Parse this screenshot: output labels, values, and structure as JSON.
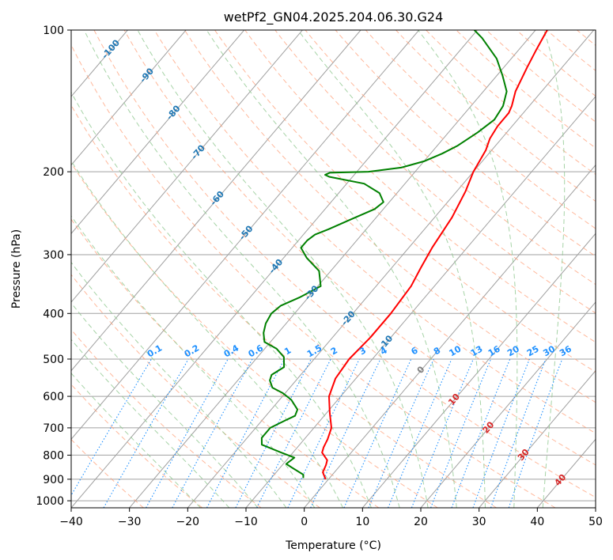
{
  "chart_data": {
    "type": "line",
    "title": "wetPf2_GN04.2025.204.06.30.G24",
    "xlabel": "Temperature (°C)",
    "ylabel": "Pressure (hPa)",
    "xlim": [
      -40,
      50
    ],
    "ylim": [
      1035,
      100
    ],
    "y_scale": "log",
    "x_ticks": [
      "−40",
      "−30",
      "−20",
      "−10",
      "0",
      "10",
      "20",
      "30",
      "40",
      "50"
    ],
    "y_ticks": [
      {
        "p": 100,
        "label": "100"
      },
      {
        "p": 200,
        "label": "200"
      },
      {
        "p": 300,
        "label": "300"
      },
      {
        "p": 400,
        "label": "400"
      },
      {
        "p": 500,
        "label": "500"
      },
      {
        "p": 600,
        "label": "600"
      },
      {
        "p": 700,
        "label": "700"
      },
      {
        "p": 800,
        "label": "800"
      },
      {
        "p": 900,
        "label": "900"
      },
      {
        "p": 1000,
        "label": "1000"
      }
    ],
    "grid": true,
    "colors": {
      "temperature": "#ff0000",
      "dewpoint": "#008000",
      "isotherm": "#a0a0a0",
      "dry_adiabat": "#ffa07a",
      "moist_adiabat": "#90c890",
      "mixing_ratio": "#1e90ff",
      "skew_isotherm_label": "#1f77b4",
      "warm_isotherm_label": "#d62728",
      "zero_isotherm_label": "#808080"
    },
    "series": [
      {
        "key": "temperature",
        "points": [
          [
            -0.5,
            900
          ],
          [
            -2,
            870
          ],
          [
            -2.5,
            840
          ],
          [
            -3,
            820
          ],
          [
            -5,
            790
          ],
          [
            -5.5,
            770
          ],
          [
            -6,
            740
          ],
          [
            -7,
            700
          ],
          [
            -9.5,
            650
          ],
          [
            -12,
            600
          ],
          [
            -13.5,
            550
          ],
          [
            -14,
            500
          ],
          [
            -13.5,
            450
          ],
          [
            -13.5,
            400
          ],
          [
            -14,
            350
          ],
          [
            -15,
            320
          ],
          [
            -16,
            290
          ],
          [
            -17,
            250
          ],
          [
            -18.5,
            220
          ],
          [
            -20,
            200
          ],
          [
            -21,
            180
          ],
          [
            -22,
            170
          ],
          [
            -22.5,
            160
          ],
          [
            -22.5,
            150
          ],
          [
            -23,
            145
          ],
          [
            -24.5,
            135
          ],
          [
            -26,
            120
          ],
          [
            -27,
            110
          ],
          [
            -28,
            100
          ]
        ]
      },
      {
        "key": "dewpoint",
        "points": [
          [
            -4.5,
            895
          ],
          [
            -5,
            880
          ],
          [
            -8,
            850
          ],
          [
            -9.5,
            835
          ],
          [
            -9,
            810
          ],
          [
            -12,
            790
          ],
          [
            -16.5,
            760
          ],
          [
            -17.5,
            735
          ],
          [
            -17.5,
            700
          ],
          [
            -16,
            675
          ],
          [
            -15,
            660
          ],
          [
            -15.5,
            640
          ],
          [
            -18,
            610
          ],
          [
            -20.5,
            590
          ],
          [
            -23,
            575
          ],
          [
            -24.5,
            555
          ],
          [
            -25,
            540
          ],
          [
            -24,
            520
          ],
          [
            -25.5,
            495
          ],
          [
            -28,
            475
          ],
          [
            -31,
            460
          ],
          [
            -32.5,
            440
          ],
          [
            -33.5,
            420
          ],
          [
            -34,
            400
          ],
          [
            -33.5,
            385
          ],
          [
            -31.5,
            370
          ],
          [
            -29.5,
            350
          ],
          [
            -32,
            325
          ],
          [
            -36,
            305
          ],
          [
            -38.5,
            290
          ],
          [
            -38.5,
            280
          ],
          [
            -38,
            272
          ],
          [
            -36.5,
            265
          ],
          [
            -34,
            252
          ],
          [
            -31.5,
            240
          ],
          [
            -31,
            232
          ],
          [
            -33,
            222
          ],
          [
            -37,
            212
          ],
          [
            -44,
            205
          ],
          [
            -45,
            203
          ],
          [
            -44.5,
            201
          ],
          [
            -38,
            200
          ],
          [
            -33,
            196
          ],
          [
            -30,
            190
          ],
          [
            -28,
            183
          ],
          [
            -26.5,
            176
          ],
          [
            -25,
            165
          ],
          [
            -24,
            155
          ],
          [
            -24.5,
            145
          ],
          [
            -26,
            135
          ],
          [
            -29,
            125
          ],
          [
            -32.5,
            115
          ],
          [
            -38,
            104
          ],
          [
            -40.5,
            100
          ]
        ]
      }
    ],
    "isotherm_labels": [
      {
        "t": -100,
        "p": 110,
        "text": "-100"
      },
      {
        "t": -90,
        "p": 125,
        "text": "-90"
      },
      {
        "t": -80,
        "p": 150,
        "text": "-80"
      },
      {
        "t": -70,
        "p": 182,
        "text": "-70"
      },
      {
        "t": -60,
        "p": 228,
        "text": "-60"
      },
      {
        "t": -50,
        "p": 270,
        "text": "-50"
      },
      {
        "t": -40,
        "p": 318,
        "text": "-40"
      },
      {
        "t": -30,
        "p": 362,
        "text": "-30"
      },
      {
        "t": -20,
        "p": 410,
        "text": "-20"
      },
      {
        "t": -10,
        "p": 462,
        "text": "-10"
      },
      {
        "t": 0,
        "p": 528,
        "text": "0"
      },
      {
        "t": 10,
        "p": 610,
        "text": "10"
      },
      {
        "t": 20,
        "p": 700,
        "text": "20"
      },
      {
        "t": 30,
        "p": 800,
        "text": "30"
      },
      {
        "t": 40,
        "p": 905,
        "text": "40"
      }
    ],
    "mixing_ratios": [
      {
        "w": 0.1,
        "text": "0.1"
      },
      {
        "w": 0.2,
        "text": "0.2"
      },
      {
        "w": 0.4,
        "text": "0.4"
      },
      {
        "w": 0.6,
        "text": "0.6"
      },
      {
        "w": 1,
        "text": "1"
      },
      {
        "w": 1.5,
        "text": "1.5"
      },
      {
        "w": 2,
        "text": "2"
      },
      {
        "w": 3,
        "text": "3"
      },
      {
        "w": 4,
        "text": "4"
      },
      {
        "w": 6,
        "text": "6"
      },
      {
        "w": 8,
        "text": "8"
      },
      {
        "w": 10,
        "text": "10"
      },
      {
        "w": 13,
        "text": "13"
      },
      {
        "w": 16,
        "text": "16"
      },
      {
        "w": 20,
        "text": "20"
      },
      {
        "w": 25,
        "text": "25"
      },
      {
        "w": 30,
        "text": "30"
      },
      {
        "w": 36,
        "text": "36"
      }
    ]
  }
}
